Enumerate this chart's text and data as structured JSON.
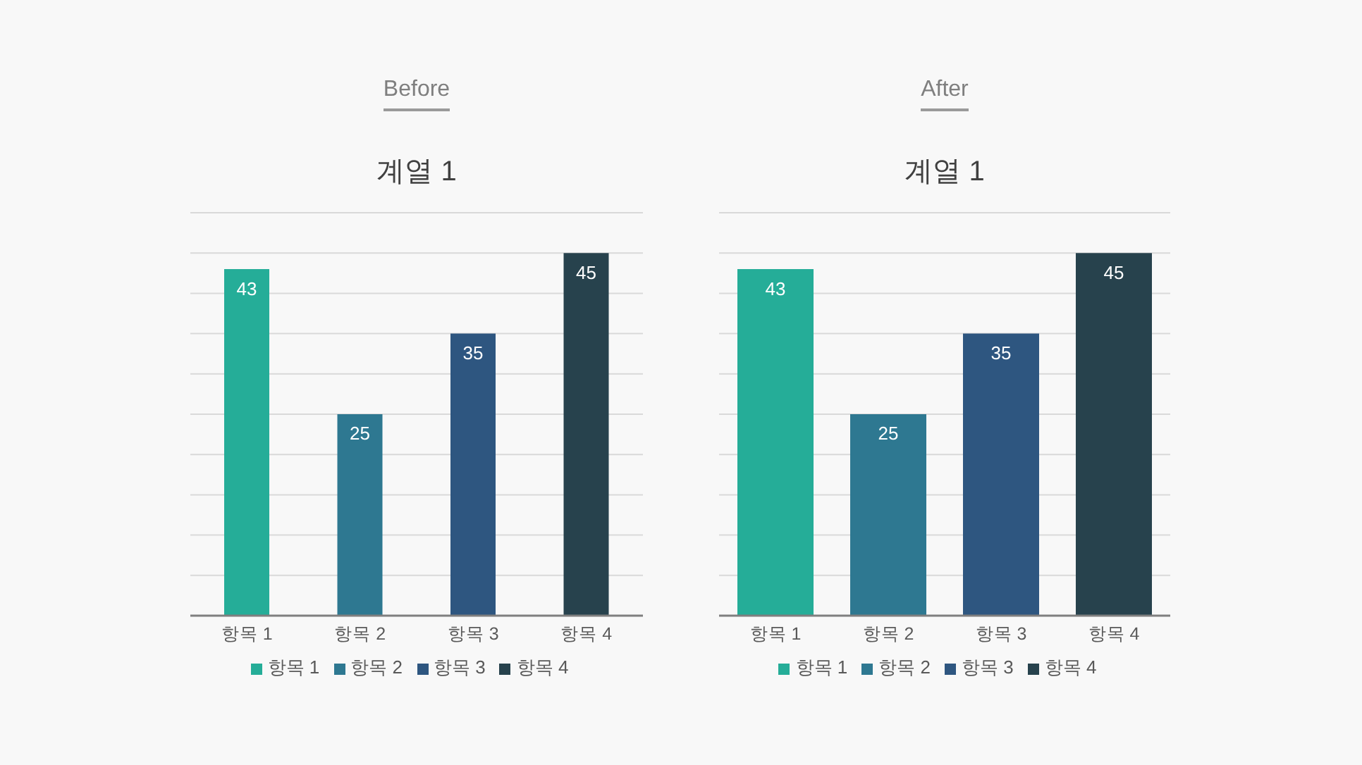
{
  "chart_data": [
    {
      "type": "bar",
      "title": "Before",
      "subtitle": "계열 1",
      "categories": [
        "항목 1",
        "항목 2",
        "항목 3",
        "항목 4"
      ],
      "series": [
        {
          "name": "항목 1",
          "color": "#25ad98",
          "values": [
            43,
            null,
            null,
            null
          ]
        },
        {
          "name": "항목 2",
          "color": "#2e7891",
          "values": [
            null,
            25,
            null,
            null
          ]
        },
        {
          "name": "항목 3",
          "color": "#2e5680",
          "values": [
            null,
            null,
            35,
            null
          ]
        },
        {
          "name": "항목 4",
          "color": "#27424d",
          "values": [
            null,
            null,
            null,
            45
          ]
        }
      ],
      "stacked": true,
      "ylim": [
        0,
        50
      ],
      "yticks": [
        {
          "value": 0,
          "label": null
        },
        {
          "value": 5,
          "label": null
        },
        {
          "value": 10,
          "label": null
        },
        {
          "value": 15,
          "label": null
        },
        {
          "value": 20,
          "label": null
        },
        {
          "value": 25,
          "label": null
        },
        {
          "value": 30,
          "label": null
        },
        {
          "value": 35,
          "label": null
        },
        {
          "value": 40,
          "label": null
        },
        {
          "value": 45,
          "label": null
        },
        {
          "value": 50,
          "label": null
        }
      ],
      "grid": "y",
      "legend": "bottom",
      "tick_labels": "x",
      "data_labels": true
    },
    {
      "type": "bar",
      "title": "After",
      "subtitle": "계열 1",
      "categories": [
        "항목 1",
        "항목 2",
        "항목 3",
        "항목 4"
      ],
      "series": [
        {
          "name": "항목 1",
          "color": "#25ad98",
          "values": [
            43,
            null,
            null,
            null
          ]
        },
        {
          "name": "항목 2",
          "color": "#2e7891",
          "values": [
            null,
            25,
            null,
            null
          ]
        },
        {
          "name": "항목 3",
          "color": "#2e5680",
          "values": [
            null,
            null,
            35,
            null
          ]
        },
        {
          "name": "항목 4",
          "color": "#27424d",
          "values": [
            null,
            null,
            null,
            45
          ]
        }
      ],
      "stacked": true,
      "ylim": [
        0,
        50
      ],
      "yticks": [
        {
          "value": 0,
          "label": null
        },
        {
          "value": 5,
          "label": null
        },
        {
          "value": 10,
          "label": null
        },
        {
          "value": 15,
          "label": null
        },
        {
          "value": 20,
          "label": null
        },
        {
          "value": 25,
          "label": null
        },
        {
          "value": 30,
          "label": null
        },
        {
          "value": 35,
          "label": null
        },
        {
          "value": 40,
          "label": null
        },
        {
          "value": 45,
          "label": null
        },
        {
          "value": 50,
          "label": null
        }
      ],
      "grid": "y",
      "legend": "bottom",
      "tick_labels": "x",
      "data_labels": true
    }
  ]
}
